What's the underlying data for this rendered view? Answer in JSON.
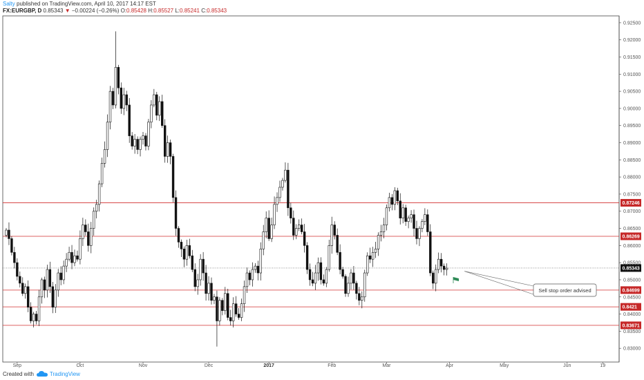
{
  "header": {
    "author": "Salty",
    "published": "published on TradingView.com, April 10, 2017 14:17 EST",
    "symbol": "FX:EURGBP, D",
    "last": "0.85343",
    "change_arrow": "▼",
    "change": "−0.00224 (−0.26%)",
    "o_label": "O:",
    "o": "0.85428",
    "h_label": "H:",
    "h": "0.85527",
    "l_label": "L:",
    "l": "0.85241",
    "c_label": "C:",
    "c": "0.85343"
  },
  "footer": {
    "created_with": "Created with",
    "brand": "TradingView",
    "logo_icon": "tradingview-cloud-icon"
  },
  "colors": {
    "level_line": "#d32f2f",
    "level_label_bg": "#c62828",
    "price_label_bg": "#111111",
    "candle": "#111111",
    "flag": "#2e8b57"
  },
  "chart_data": {
    "type": "candlestick",
    "symbol": "FX:EURGBP",
    "timeframe": "D",
    "ylim": [
      0.826,
      0.927
    ],
    "y_ticks": [
      "0.92500",
      "0.92000",
      "0.91500",
      "0.91000",
      "0.90500",
      "0.90000",
      "0.89500",
      "0.89000",
      "0.88500",
      "0.88000",
      "0.87500",
      "0.87000",
      "0.86500",
      "0.86000",
      "0.85500",
      "0.85000",
      "0.84500",
      "0.84000",
      "0.83500",
      "0.83000"
    ],
    "x_ticks": [
      {
        "label": "Sep",
        "bold": false,
        "index": 4
      },
      {
        "label": "Oct",
        "bold": false,
        "index": 27
      },
      {
        "label": "Nov",
        "bold": false,
        "index": 50
      },
      {
        "label": "Dec",
        "bold": false,
        "index": 74
      },
      {
        "label": "2017",
        "bold": true,
        "index": 96
      },
      {
        "label": "Feb",
        "bold": false,
        "index": 119
      },
      {
        "label": "Mar",
        "bold": false,
        "index": 139
      },
      {
        "label": "Apr",
        "bold": false,
        "index": 162
      },
      {
        "label": "May",
        "bold": false,
        "index": 182
      },
      {
        "label": "Jun",
        "bold": false,
        "index": 205
      },
      {
        "label": "19",
        "bold": false,
        "index": 218
      }
    ],
    "levels": [
      {
        "value": 0.87246,
        "label": "0.87246"
      },
      {
        "value": 0.86269,
        "label": "0.86269"
      },
      {
        "value": 0.84699,
        "label": "0.84699"
      },
      {
        "value": 0.8421,
        "label": "0.8421"
      },
      {
        "value": 0.83671,
        "label": "0.83671"
      }
    ],
    "current_price": {
      "value": 0.85343,
      "label": "0.85343"
    },
    "annotation": {
      "text": "Sell stop order advised",
      "anchor_index": 167,
      "anchor_value": 0.8525
    },
    "closes": [
      0.8645,
      0.862,
      0.858,
      0.855,
      0.851,
      0.849,
      0.846,
      0.848,
      0.842,
      0.838,
      0.84,
      0.838,
      0.845,
      0.85,
      0.847,
      0.853,
      0.848,
      0.842,
      0.847,
      0.852,
      0.85,
      0.854,
      0.856,
      0.858,
      0.855,
      0.857,
      0.856,
      0.862,
      0.866,
      0.864,
      0.86,
      0.865,
      0.87,
      0.872,
      0.878,
      0.884,
      0.888,
      0.896,
      0.905,
      0.901,
      0.912,
      0.906,
      0.9,
      0.904,
      0.901,
      0.892,
      0.889,
      0.891,
      0.888,
      0.891,
      0.892,
      0.889,
      0.896,
      0.901,
      0.904,
      0.898,
      0.902,
      0.895,
      0.886,
      0.89,
      0.886,
      0.874,
      0.865,
      0.861,
      0.859,
      0.856,
      0.86,
      0.857,
      0.853,
      0.848,
      0.85,
      0.856,
      0.852,
      0.846,
      0.849,
      0.844,
      0.845,
      0.838,
      0.844,
      0.841,
      0.846,
      0.839,
      0.838,
      0.843,
      0.84,
      0.839,
      0.843,
      0.848,
      0.852,
      0.85,
      0.853,
      0.854,
      0.852,
      0.859,
      0.864,
      0.868,
      0.862,
      0.866,
      0.872,
      0.874,
      0.877,
      0.879,
      0.882,
      0.871,
      0.868,
      0.863,
      0.865,
      0.866,
      0.864,
      0.86,
      0.853,
      0.85,
      0.849,
      0.852,
      0.855,
      0.85,
      0.849,
      0.853,
      0.86,
      0.866,
      0.863,
      0.858,
      0.853,
      0.851,
      0.846,
      0.849,
      0.852,
      0.849,
      0.846,
      0.844,
      0.845,
      0.852,
      0.857,
      0.856,
      0.858,
      0.859,
      0.863,
      0.864,
      0.866,
      0.871,
      0.874,
      0.872,
      0.876,
      0.873,
      0.868,
      0.871,
      0.867,
      0.868,
      0.869,
      0.865,
      0.862,
      0.865,
      0.867,
      0.869,
      0.864,
      0.852,
      0.849,
      0.853,
      0.856,
      0.854,
      0.853,
      0.8534
    ]
  }
}
